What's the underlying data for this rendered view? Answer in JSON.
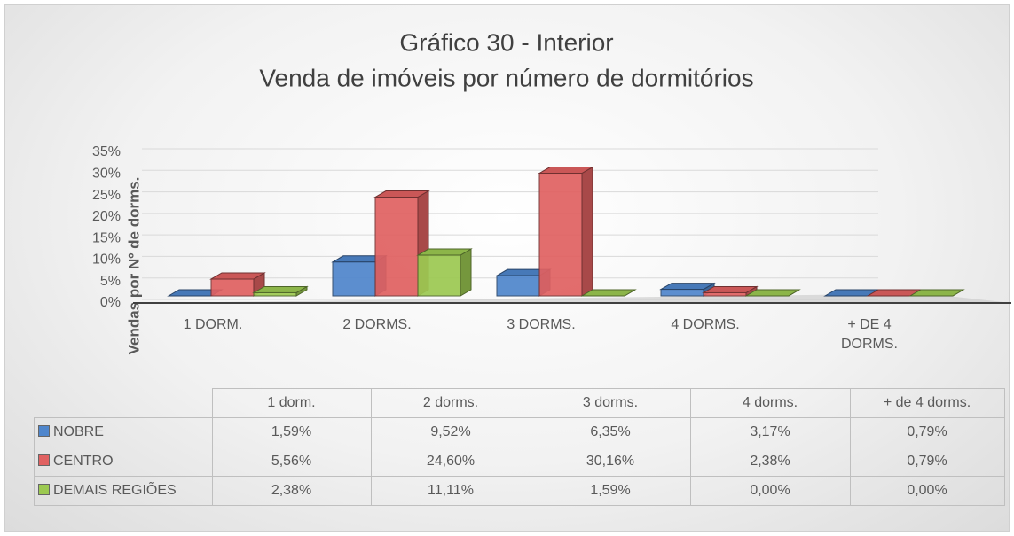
{
  "chart_data": {
    "type": "bar3d",
    "title": "Gráfico 30 - Interior",
    "subtitle": "Venda de imóveis por número de dormitórios",
    "y_label": "Vendas por Nº de dorms.",
    "categories": [
      "1 DORM.",
      "2 DORMS.",
      "3 DORMS.",
      "4 DORMS.",
      "+ DE 4 DORMS."
    ],
    "table_columns": [
      "1 dorm.",
      "2 dorms.",
      "3 dorms.",
      "4 dorms.",
      "+ de 4 dorms."
    ],
    "series": [
      {
        "name": "NOBRE",
        "color": "#4f86cc",
        "values": [
          1.59,
          9.52,
          6.35,
          3.17,
          0.79
        ],
        "value_labels": [
          "1,59%",
          "9,52%",
          "6,35%",
          "3,17%",
          "0,79%"
        ]
      },
      {
        "name": "CENTRO",
        "color": "#e06161",
        "values": [
          5.56,
          24.6,
          30.16,
          2.38,
          0.79
        ],
        "value_labels": [
          "5,56%",
          "24,60%",
          "30,16%",
          "2,38%",
          "0,79%"
        ]
      },
      {
        "name": "DEMAIS REGIÕES",
        "color": "#9cc951",
        "values": [
          2.38,
          11.11,
          1.59,
          0,
          0
        ],
        "value_labels": [
          "2,38%",
          "11,11%",
          "1,59%",
          "0,00%",
          "0,00%"
        ]
      }
    ],
    "ylim": [
      0,
      35
    ],
    "yticks": [
      {
        "value": 0,
        "label": "0%"
      },
      {
        "value": 5,
        "label": "5%"
      },
      {
        "value": 10,
        "label": "10%"
      },
      {
        "value": 15,
        "label": "15%"
      },
      {
        "value": 20,
        "label": "20%"
      },
      {
        "value": 25,
        "label": "25%"
      },
      {
        "value": 30,
        "label": "30%"
      },
      {
        "value": 35,
        "label": "35%"
      }
    ],
    "grid": true
  }
}
